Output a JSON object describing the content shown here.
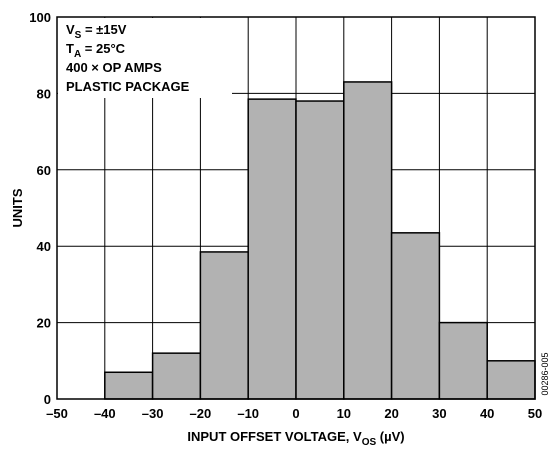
{
  "chart_data": {
    "type": "bar",
    "bins": [
      {
        "range": [
          -40,
          -30
        ],
        "value": 7
      },
      {
        "range": [
          -30,
          -20
        ],
        "value": 12
      },
      {
        "range": [
          -20,
          -10
        ],
        "value": 38.5
      },
      {
        "range": [
          -10,
          0
        ],
        "value": 78.5
      },
      {
        "range": [
          0,
          10
        ],
        "value": 78
      },
      {
        "range": [
          10,
          20
        ],
        "value": 83
      },
      {
        "range": [
          20,
          30
        ],
        "value": 43.5
      },
      {
        "range": [
          30,
          40
        ],
        "value": 20
      },
      {
        "range": [
          40,
          50
        ],
        "value": 10
      }
    ],
    "xlim": [
      -50,
      50
    ],
    "ylim": [
      0,
      100
    ],
    "x_ticks": [
      "–50",
      "–40",
      "–30",
      "–20",
      "–10",
      "0",
      "10",
      "20",
      "30",
      "40",
      "50"
    ],
    "y_ticks": [
      "0",
      "20",
      "40",
      "60",
      "80",
      "100"
    ],
    "xlabel": {
      "text": "INPUT OFFSET VOLTAGE, V",
      "sub": "OS",
      "unit": " (µV)"
    },
    "ylabel": "UNITS",
    "grid": true,
    "bar_color": "#b2b2b2",
    "annotations": [
      {
        "text": "V",
        "sub": "S",
        "rest": " = ±15V"
      },
      {
        "text": "T",
        "sub": "A",
        "rest": " = 25°C"
      },
      {
        "text": "400 × OP AMPS",
        "sub": "",
        "rest": ""
      },
      {
        "text": "PLASTIC PACKAGE",
        "sub": "",
        "rest": ""
      }
    ],
    "figure_code": "00286-005"
  }
}
